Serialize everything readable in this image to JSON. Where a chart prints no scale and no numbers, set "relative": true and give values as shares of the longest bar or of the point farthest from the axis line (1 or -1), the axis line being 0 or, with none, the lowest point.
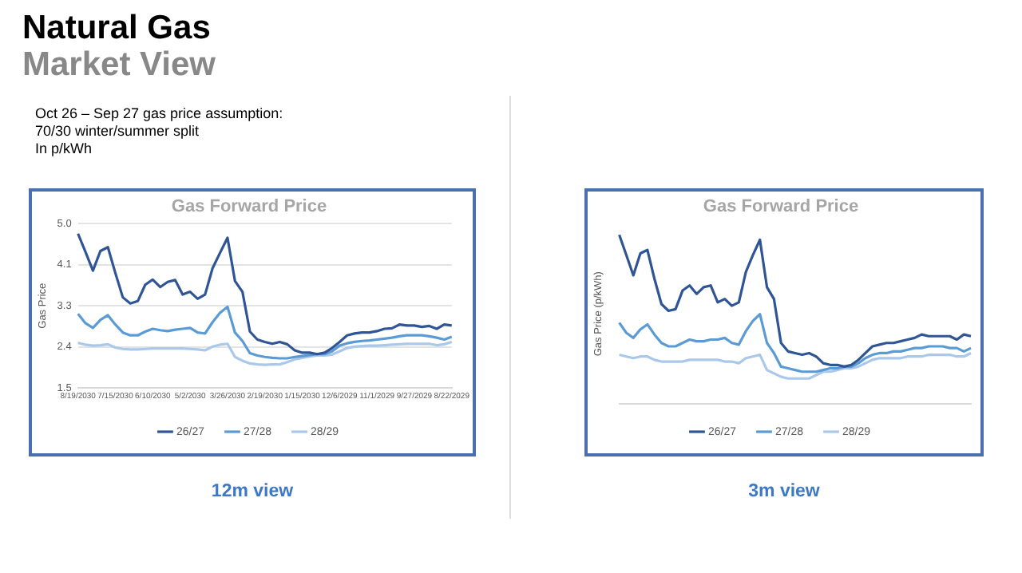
{
  "chart_data": [
    {
      "type": "other",
      "title": "Natural Gas",
      "subtitle": "Market View",
      "annotations": [
        "Oct 26 – Sep 27 gas price assumption:",
        "70/30 winter/summer split",
        "In p/kWh"
      ]
    },
    {
      "type": "line",
      "title": "Gas Forward Price",
      "ylabel": "Gas Price",
      "annotations": [
        "12m view"
      ],
      "categories": [
        "8/19/2030",
        null,
        null,
        null,
        null,
        "7/15/2030",
        null,
        null,
        null,
        null,
        "6/10/2030",
        null,
        null,
        null,
        null,
        "5/2/2030",
        null,
        null,
        null,
        null,
        "3/26/2030",
        null,
        null,
        null,
        null,
        "2/19/2030",
        null,
        null,
        null,
        null,
        "1/15/2030",
        null,
        null,
        null,
        null,
        "12/6/2029",
        null,
        null,
        null,
        null,
        "11/1/2029",
        null,
        null,
        null,
        null,
        "9/27/2029",
        null,
        null,
        null,
        null,
        "8/22/2029"
      ],
      "series": [
        {
          "name": "26/27",
          "color": "#2f5597",
          "values": [
            4.79,
            4.4,
            4.0,
            4.42,
            4.5,
            3.95,
            3.43,
            3.3,
            3.35,
            3.7,
            3.81,
            3.65,
            3.76,
            3.8,
            3.49,
            3.55,
            3.4,
            3.49,
            4.05,
            4.38,
            4.7,
            3.78,
            3.55,
            2.7,
            2.53,
            2.48,
            2.44,
            2.48,
            2.43,
            2.3,
            2.25,
            2.25,
            2.22,
            2.25,
            2.35,
            2.48,
            2.62,
            2.66,
            2.68,
            2.68,
            2.71,
            2.76,
            2.77,
            2.85,
            2.83,
            2.83,
            2.8,
            2.82,
            2.76,
            2.85,
            2.83
          ]
        },
        {
          "name": "27/28",
          "color": "#5b9bd5",
          "values": [
            3.08,
            2.88,
            2.78,
            2.95,
            3.05,
            2.85,
            2.68,
            2.62,
            2.62,
            2.7,
            2.76,
            2.73,
            2.71,
            2.74,
            2.76,
            2.78,
            2.68,
            2.66,
            2.9,
            3.1,
            3.23,
            2.68,
            2.5,
            2.24,
            2.19,
            2.16,
            2.14,
            2.13,
            2.13,
            2.16,
            2.18,
            2.2,
            2.22,
            2.22,
            2.28,
            2.4,
            2.45,
            2.48,
            2.5,
            2.51,
            2.53,
            2.55,
            2.57,
            2.6,
            2.62,
            2.62,
            2.62,
            2.6,
            2.57,
            2.53,
            2.59
          ]
        },
        {
          "name": "28/29",
          "color": "#a9c8ea",
          "values": [
            2.46,
            2.42,
            2.4,
            2.41,
            2.43,
            2.36,
            2.33,
            2.32,
            2.32,
            2.33,
            2.34,
            2.34,
            2.34,
            2.34,
            2.34,
            2.33,
            2.32,
            2.3,
            2.38,
            2.42,
            2.44,
            2.16,
            2.08,
            2.02,
            2.0,
            1.99,
            2.0,
            2.0,
            2.05,
            2.11,
            2.14,
            2.17,
            2.19,
            2.19,
            2.21,
            2.28,
            2.35,
            2.38,
            2.39,
            2.4,
            2.4,
            2.41,
            2.42,
            2.43,
            2.44,
            2.44,
            2.44,
            2.44,
            2.41,
            2.43,
            2.48
          ]
        }
      ],
      "ylim": [
        1.5,
        5
      ],
      "yticks": [
        1.5,
        {
          "value": 2.375,
          "label": "2.4"
        },
        {
          "value": 3.25,
          "label": "3.3"
        },
        {
          "value": 4.125,
          "label": "4.1"
        },
        {
          "value": 5,
          "label": "5.0"
        }
      ],
      "grid": "y",
      "legend": "bottom"
    },
    {
      "type": "line",
      "title": "Gas Forward Price",
      "ylabel": "Gas Price (p/kWh)",
      "annotations": [
        "3m view"
      ],
      "categories": [
        null,
        null,
        null,
        null,
        null,
        null,
        null,
        null,
        null,
        null,
        null,
        null,
        null,
        null,
        null,
        null,
        null,
        null,
        null,
        null,
        null,
        null,
        null,
        null,
        null,
        null,
        null,
        null,
        null,
        null,
        null,
        null,
        null,
        null,
        null,
        null,
        null,
        null,
        null,
        null,
        null,
        null,
        null,
        null,
        null,
        null,
        null,
        null,
        null,
        null,
        null
      ],
      "series": [
        {
          "name": "26/27",
          "color": "#2f5597",
          "values": [
            1.0,
            0.88,
            0.76,
            0.89,
            0.91,
            0.74,
            0.59,
            0.55,
            0.56,
            0.67,
            0.7,
            0.65,
            0.69,
            0.7,
            0.6,
            0.62,
            0.58,
            0.6,
            0.78,
            0.88,
            0.97,
            0.69,
            0.62,
            0.36,
            0.31,
            0.3,
            0.29,
            0.3,
            0.28,
            0.24,
            0.23,
            0.23,
            0.22,
            0.23,
            0.26,
            0.3,
            0.34,
            0.35,
            0.36,
            0.36,
            0.37,
            0.38,
            0.39,
            0.41,
            0.4,
            0.4,
            0.4,
            0.4,
            0.38,
            0.41,
            0.4
          ]
        },
        {
          "name": "27/28",
          "color": "#5b9bd5",
          "values": [
            0.48,
            0.42,
            0.39,
            0.44,
            0.47,
            0.41,
            0.36,
            0.34,
            0.34,
            0.36,
            0.38,
            0.37,
            0.37,
            0.38,
            0.38,
            0.39,
            0.36,
            0.35,
            0.43,
            0.49,
            0.53,
            0.36,
            0.3,
            0.22,
            0.21,
            0.2,
            0.19,
            0.19,
            0.19,
            0.2,
            0.21,
            0.21,
            0.22,
            0.22,
            0.24,
            0.27,
            0.29,
            0.3,
            0.3,
            0.31,
            0.31,
            0.32,
            0.33,
            0.33,
            0.34,
            0.34,
            0.34,
            0.33,
            0.33,
            0.31,
            0.33
          ]
        },
        {
          "name": "28/29",
          "color": "#a9c8ea",
          "values": [
            0.29,
            0.28,
            0.27,
            0.28,
            0.28,
            0.26,
            0.25,
            0.25,
            0.25,
            0.25,
            0.26,
            0.26,
            0.26,
            0.26,
            0.26,
            0.25,
            0.25,
            0.24,
            0.27,
            0.28,
            0.29,
            0.2,
            0.18,
            0.16,
            0.15,
            0.15,
            0.15,
            0.15,
            0.17,
            0.19,
            0.19,
            0.2,
            0.21,
            0.21,
            0.22,
            0.24,
            0.26,
            0.27,
            0.27,
            0.27,
            0.27,
            0.28,
            0.28,
            0.28,
            0.29,
            0.29,
            0.29,
            0.29,
            0.28,
            0.28,
            0.3
          ]
        }
      ],
      "relative": true,
      "legend": "bottom",
      "tick_labels": false
    }
  ]
}
